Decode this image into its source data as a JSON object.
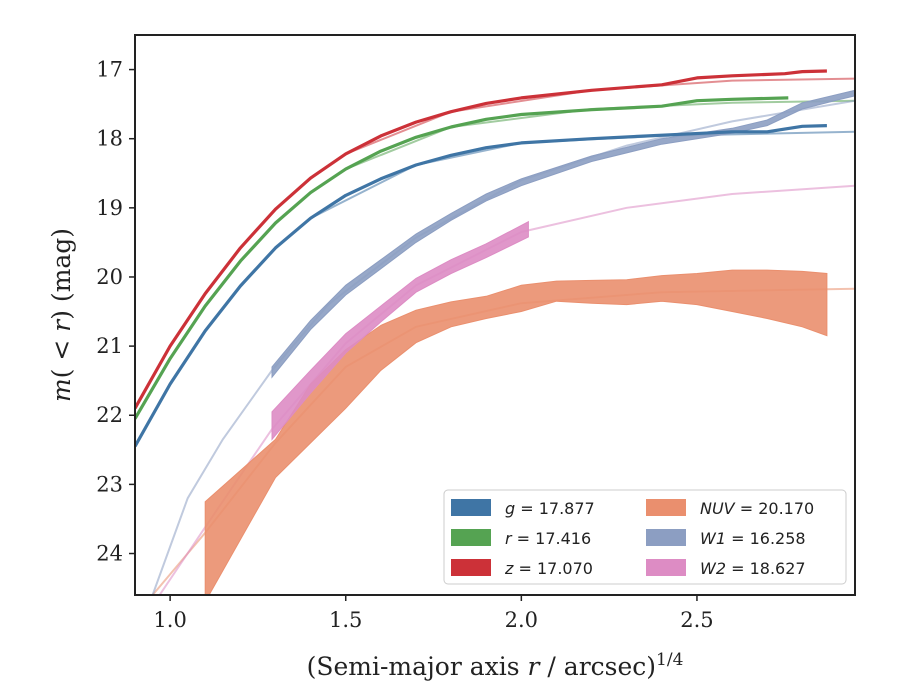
{
  "chart_data": {
    "type": "line",
    "xlabel": "(Semi-major axis r / arcsec)^1/4",
    "ylabel": "m(< r) (mag)",
    "xlim": [
      0.9,
      2.95
    ],
    "ylim": [
      24.6,
      16.5
    ],
    "x_ticks": [
      "1.0",
      "1.5",
      "2.0",
      "2.5"
    ],
    "y_ticks": [
      "17",
      "18",
      "19",
      "20",
      "21",
      "22",
      "23",
      "24"
    ],
    "grid": false,
    "legend_position": "lower-right",
    "legend": [
      {
        "key": "g",
        "symbol": "g",
        "value": "17.877",
        "color": "#3f75a5"
      },
      {
        "key": "r",
        "symbol": "r",
        "value": "17.416",
        "color": "#55a352"
      },
      {
        "key": "z",
        "symbol": "z",
        "value": "17.070",
        "color": "#cc3138"
      },
      {
        "key": "NUV",
        "symbol": "NUV",
        "value": "20.170",
        "color": "#ea8f6e"
      },
      {
        "key": "W1",
        "symbol": "W1",
        "value": "16.258",
        "color": "#8c9ec2"
      },
      {
        "key": "W2",
        "symbol": "W2",
        "value": "18.627",
        "color": "#dd8cc4"
      }
    ],
    "series": [
      {
        "key": "g",
        "color": "#3f75a5",
        "data": [
          [
            0.9,
            22.45
          ],
          [
            1.0,
            21.55
          ],
          [
            1.1,
            20.78
          ],
          [
            1.2,
            20.13
          ],
          [
            1.3,
            19.58
          ],
          [
            1.4,
            19.15
          ],
          [
            1.5,
            18.82
          ],
          [
            1.6,
            18.58
          ],
          [
            1.7,
            18.38
          ],
          [
            1.8,
            18.24
          ],
          [
            1.9,
            18.13
          ],
          [
            2.0,
            18.06
          ],
          [
            2.2,
            18.0
          ],
          [
            2.4,
            17.95
          ],
          [
            2.6,
            17.9
          ],
          [
            2.7,
            17.9
          ],
          [
            2.8,
            17.82
          ],
          [
            2.87,
            17.81
          ]
        ],
        "model": [
          [
            1.4,
            19.15
          ],
          [
            1.7,
            18.38
          ],
          [
            2.0,
            18.06
          ],
          [
            2.4,
            17.96
          ],
          [
            2.95,
            17.9
          ]
        ]
      },
      {
        "key": "r",
        "color": "#55a352",
        "data": [
          [
            0.9,
            22.05
          ],
          [
            1.0,
            21.18
          ],
          [
            1.1,
            20.42
          ],
          [
            1.2,
            19.77
          ],
          [
            1.3,
            19.22
          ],
          [
            1.4,
            18.78
          ],
          [
            1.5,
            18.44
          ],
          [
            1.6,
            18.18
          ],
          [
            1.7,
            17.98
          ],
          [
            1.8,
            17.83
          ],
          [
            1.9,
            17.72
          ],
          [
            2.0,
            17.65
          ],
          [
            2.2,
            17.58
          ],
          [
            2.4,
            17.53
          ],
          [
            2.5,
            17.45
          ],
          [
            2.6,
            17.43
          ],
          [
            2.76,
            17.41
          ]
        ],
        "model": [
          [
            1.5,
            18.44
          ],
          [
            1.8,
            17.83
          ],
          [
            2.2,
            17.57
          ],
          [
            2.6,
            17.48
          ],
          [
            2.95,
            17.45
          ]
        ]
      },
      {
        "key": "z",
        "color": "#cc3138",
        "data": [
          [
            0.9,
            21.9
          ],
          [
            1.0,
            21.0
          ],
          [
            1.1,
            20.24
          ],
          [
            1.2,
            19.58
          ],
          [
            1.3,
            19.02
          ],
          [
            1.4,
            18.57
          ],
          [
            1.5,
            18.22
          ],
          [
            1.6,
            17.96
          ],
          [
            1.7,
            17.76
          ],
          [
            1.8,
            17.61
          ],
          [
            1.9,
            17.49
          ],
          [
            2.0,
            17.41
          ],
          [
            2.2,
            17.3
          ],
          [
            2.4,
            17.22
          ],
          [
            2.5,
            17.12
          ],
          [
            2.6,
            17.09
          ],
          [
            2.75,
            17.06
          ],
          [
            2.8,
            17.03
          ],
          [
            2.87,
            17.02
          ]
        ],
        "model": [
          [
            1.5,
            18.22
          ],
          [
            1.8,
            17.61
          ],
          [
            2.2,
            17.3
          ],
          [
            2.6,
            17.16
          ],
          [
            2.95,
            17.13
          ]
        ]
      },
      {
        "key": "NUV",
        "color": "#ea8f6e",
        "band": [
          [
            1.1,
            23.25,
            24.7
          ],
          [
            1.3,
            22.35,
            22.9
          ],
          [
            1.4,
            21.55,
            22.4
          ],
          [
            1.5,
            21.05,
            21.9
          ],
          [
            1.6,
            20.7,
            21.35
          ],
          [
            1.7,
            20.48,
            20.95
          ],
          [
            1.8,
            20.36,
            20.72
          ],
          [
            1.9,
            20.28,
            20.6
          ],
          [
            2.0,
            20.12,
            20.5
          ],
          [
            2.1,
            20.06,
            20.35
          ],
          [
            2.2,
            20.05,
            20.38
          ],
          [
            2.3,
            20.04,
            20.4
          ],
          [
            2.4,
            19.98,
            20.35
          ],
          [
            2.5,
            19.95,
            20.4
          ],
          [
            2.6,
            19.9,
            20.5
          ],
          [
            2.7,
            19.9,
            20.6
          ],
          [
            2.8,
            19.92,
            20.72
          ],
          [
            2.87,
            19.95,
            20.85
          ]
        ],
        "model": [
          [
            0.95,
            24.6
          ],
          [
            1.1,
            23.7
          ],
          [
            1.3,
            22.4
          ],
          [
            1.5,
            21.3
          ],
          [
            1.7,
            20.72
          ],
          [
            2.0,
            20.38
          ],
          [
            2.4,
            20.22
          ],
          [
            2.95,
            20.17
          ]
        ]
      },
      {
        "key": "W1",
        "color": "#8c9ec2",
        "band": [
          [
            1.29,
            21.3,
            21.45
          ],
          [
            1.4,
            20.63,
            20.76
          ],
          [
            1.5,
            20.12,
            20.26
          ],
          [
            1.6,
            19.75,
            19.88
          ],
          [
            1.7,
            19.38,
            19.5
          ],
          [
            1.8,
            19.08,
            19.18
          ],
          [
            1.9,
            18.8,
            18.9
          ],
          [
            2.0,
            18.58,
            18.68
          ],
          [
            2.2,
            18.25,
            18.33
          ],
          [
            2.4,
            18.0,
            18.08
          ],
          [
            2.6,
            17.85,
            17.92
          ],
          [
            2.7,
            17.73,
            17.81
          ],
          [
            2.8,
            17.48,
            17.57
          ],
          [
            2.9,
            17.36,
            17.44
          ],
          [
            2.95,
            17.3,
            17.38
          ]
        ],
        "model": [
          [
            0.95,
            24.6
          ],
          [
            1.05,
            23.2
          ],
          [
            1.15,
            22.35
          ],
          [
            1.29,
            21.35
          ],
          [
            1.45,
            20.4
          ],
          [
            1.7,
            19.43
          ],
          [
            2.0,
            18.6
          ],
          [
            2.3,
            18.1
          ],
          [
            2.6,
            17.75
          ],
          [
            2.95,
            17.45
          ]
        ]
      },
      {
        "key": "W2",
        "color": "#dd8cc4",
        "band": [
          [
            1.29,
            21.95,
            22.35
          ],
          [
            1.4,
            21.35,
            21.68
          ],
          [
            1.5,
            20.82,
            21.1
          ],
          [
            1.6,
            20.42,
            20.65
          ],
          [
            1.7,
            20.02,
            20.22
          ],
          [
            1.8,
            19.75,
            19.95
          ],
          [
            1.9,
            19.52,
            19.72
          ],
          [
            2.02,
            19.2,
            19.42
          ]
        ],
        "model": [
          [
            0.97,
            24.6
          ],
          [
            1.1,
            23.62
          ],
          [
            1.29,
            22.2
          ],
          [
            1.5,
            20.96
          ],
          [
            1.7,
            20.12
          ],
          [
            2.0,
            19.35
          ],
          [
            2.3,
            19.0
          ],
          [
            2.6,
            18.8
          ],
          [
            2.95,
            18.68
          ]
        ]
      }
    ]
  }
}
